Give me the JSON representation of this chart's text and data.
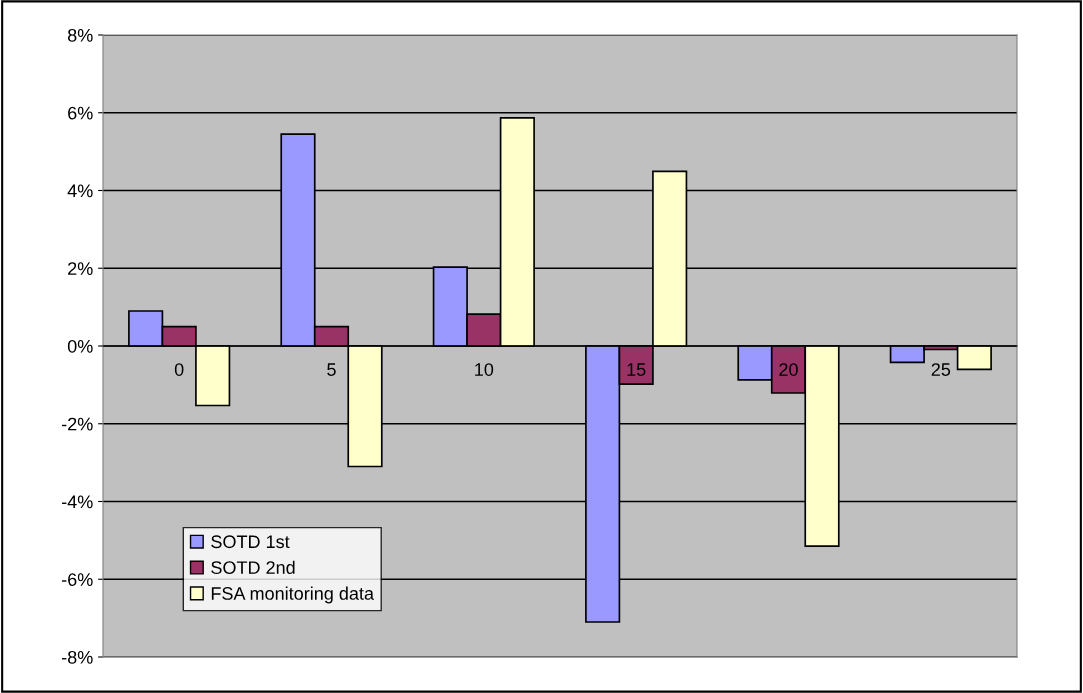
{
  "chart_data": {
    "type": "bar",
    "categories": [
      "0",
      "5",
      "10",
      "15",
      "20",
      "25"
    ],
    "series": [
      {
        "name": "SOTD 1st",
        "color": "#9999ff",
        "values": [
          0.9,
          5.45,
          2.03,
          -7.1,
          -0.87,
          -0.42
        ]
      },
      {
        "name": "SOTD 2nd",
        "color": "#993366",
        "values": [
          0.5,
          0.5,
          0.82,
          -0.98,
          -1.21,
          -0.09
        ]
      },
      {
        "name": "FSA monitoring data",
        "color": "#ffffcc",
        "values": [
          -1.53,
          -3.1,
          5.87,
          4.49,
          -5.15,
          -0.6
        ]
      }
    ],
    "ylim": [
      -8,
      8
    ],
    "yticks": [
      {
        "value": -8,
        "label": "-8%"
      },
      {
        "value": -6,
        "label": "-6%"
      },
      {
        "value": -4,
        "label": "-4%"
      },
      {
        "value": -2,
        "label": "-2%"
      },
      {
        "value": 0,
        "label": "0%"
      },
      {
        "value": 2,
        "label": "2%"
      },
      {
        "value": 4,
        "label": "4%"
      },
      {
        "value": 6,
        "label": "6%"
      },
      {
        "value": 8,
        "label": "8%"
      }
    ],
    "grid": "y",
    "legend": "bottom left"
  }
}
